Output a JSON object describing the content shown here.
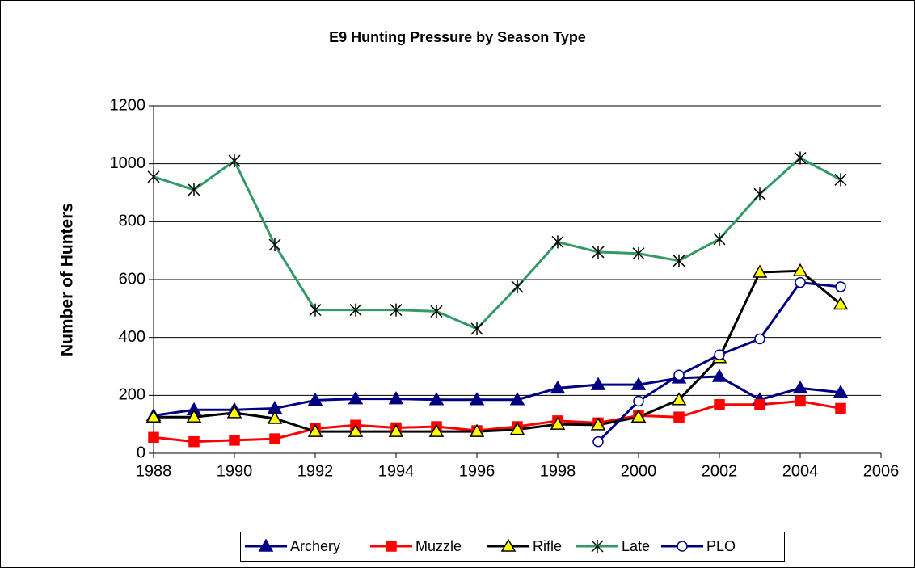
{
  "chart_data": {
    "type": "line",
    "title": "E9 Hunting Pressure by Season Type",
    "y_label": "Number of Hunters",
    "x": [
      1988,
      1989,
      1990,
      1991,
      1992,
      1993,
      1994,
      1995,
      1996,
      1997,
      1998,
      1999,
      2000,
      2001,
      2002,
      2003,
      2004,
      2005
    ],
    "xlim": [
      1988,
      2006
    ],
    "xticks": [
      1988,
      1990,
      1992,
      1994,
      1996,
      1998,
      2000,
      2002,
      2004,
      2006
    ],
    "ylim": [
      0,
      1200
    ],
    "yticks": [
      0,
      200,
      400,
      600,
      800,
      1000,
      1200
    ],
    "grid": true,
    "legend": "bottom",
    "series": [
      {
        "name": "Archery",
        "color": "#000080",
        "marker": "triangle",
        "marker_color": "#000080",
        "marker_fill": "#000080",
        "values": [
          130,
          150,
          150,
          155,
          183,
          188,
          188,
          185,
          185,
          185,
          225,
          237,
          237,
          260,
          265,
          185,
          225,
          210
        ]
      },
      {
        "name": "Muzzle",
        "color": "#ff0000",
        "marker": "square",
        "marker_color": "#ff0000",
        "marker_fill": "#ff0000",
        "values": [
          55,
          40,
          45,
          50,
          85,
          97,
          88,
          92,
          78,
          92,
          112,
          105,
          130,
          125,
          168,
          168,
          180,
          155
        ]
      },
      {
        "name": "Rifle",
        "color": "#000000",
        "marker": "triangle",
        "marker_color": "#000000",
        "marker_fill": "#ffff00",
        "values": [
          125,
          125,
          140,
          120,
          75,
          75,
          75,
          75,
          75,
          82,
          100,
          98,
          125,
          185,
          330,
          625,
          630,
          515
        ]
      },
      {
        "name": "Late",
        "color": "#339966",
        "marker": "asterisk",
        "marker_color": "#000000",
        "marker_fill": "none",
        "values": [
          955,
          910,
          1010,
          720,
          495,
          495,
          495,
          490,
          430,
          575,
          730,
          695,
          690,
          665,
          740,
          895,
          1020,
          945
        ]
      },
      {
        "name": "PLO",
        "color": "#000080",
        "marker": "circle",
        "marker_color": "#000080",
        "marker_fill": "#ffffff",
        "values": [
          null,
          null,
          null,
          null,
          null,
          null,
          null,
          null,
          null,
          null,
          null,
          40,
          180,
          270,
          340,
          395,
          590,
          575
        ]
      }
    ]
  }
}
